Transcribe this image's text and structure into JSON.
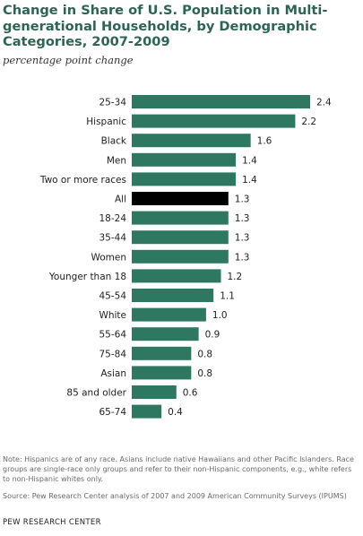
{
  "chart_data": {
    "type": "bar",
    "orientation": "horizontal",
    "title": "Change in Share of U.S. Population in Multi-generational Households, by Demographic Categories, 2007-2009",
    "subtitle": "percentage point change",
    "categories": [
      "25-34",
      "Hispanic",
      "Black",
      "Men",
      "Two or more races",
      "All",
      "18-24",
      "35-44",
      "Women",
      "Younger than 18",
      "45-54",
      "White",
      "55-64",
      "75-84",
      "Asian",
      "85 and older",
      "65-74"
    ],
    "values": [
      2.4,
      2.2,
      1.6,
      1.4,
      1.4,
      1.3,
      1.3,
      1.3,
      1.3,
      1.2,
      1.1,
      1.0,
      0.9,
      0.8,
      0.8,
      0.6,
      0.4
    ],
    "value_labels": [
      "2.4",
      "2.2",
      "1.6",
      "1.4",
      "1.4",
      "1.3",
      "1.3",
      "1.3",
      "1.3",
      "1.2",
      "1.1",
      "1.0",
      "0.9",
      "0.8",
      "0.8",
      "0.6",
      "0.4"
    ],
    "highlight": "All",
    "bar_color": "#2e7760",
    "highlight_color": "#000000",
    "xlim": [
      0,
      2.4
    ],
    "grid": false,
    "legend": "none"
  },
  "note": "Note: Hispanics are of any race. Asians include native Hawaiians and other Pacific Islanders. Race groups are single-race only groups and refer to their non-Hispanic components, e.g., white refers to non-Hispanic whites only.",
  "source": "Source: Pew Research Center analysis of 2007 and 2009 American Community Surveys (IPUMS)",
  "footer": "PEW RESEARCH CENTER",
  "colors": {
    "title": "#2d6455"
  }
}
